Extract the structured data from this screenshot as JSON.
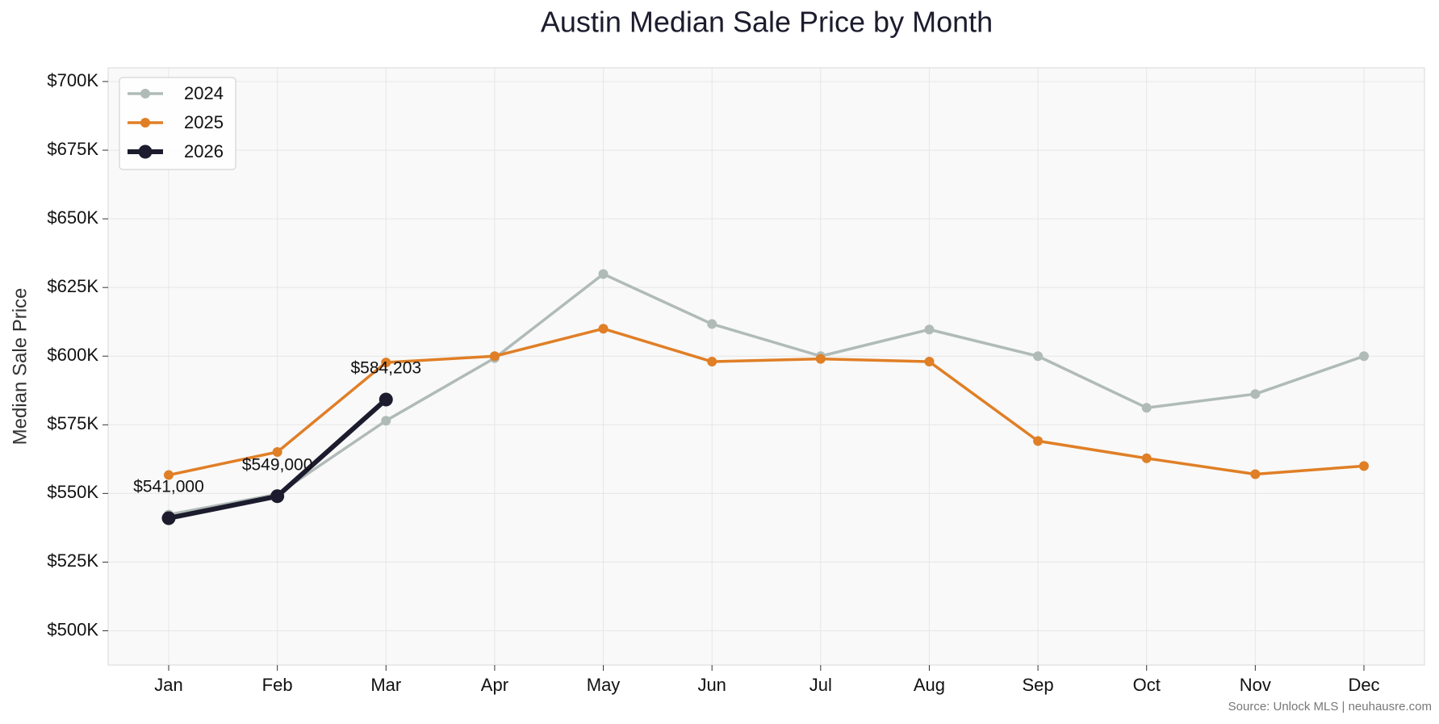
{
  "chart_data": {
    "type": "line",
    "title": "Austin Median Sale Price by Month",
    "y_label": "Median Sale Price",
    "source": "Source: Unlock MLS | neuhausre.com",
    "categories": [
      "Jan",
      "Feb",
      "Mar",
      "Apr",
      "May",
      "Jun",
      "Jul",
      "Aug",
      "Sep",
      "Oct",
      "Nov",
      "Dec"
    ],
    "series": [
      {
        "name": "2024",
        "color": "#b0bbb8",
        "values": [
          542300,
          549700,
          576500,
          599300,
          629900,
          611700,
          600000,
          609700,
          600000,
          581200,
          586200,
          600000
        ]
      },
      {
        "name": "2025",
        "color": "#e07f26",
        "values": [
          556700,
          565100,
          597700,
          600000,
          610000,
          598000,
          599000,
          598000,
          569100,
          562800,
          557000,
          560000
        ]
      },
      {
        "name": "2026",
        "color": "#1c1c2e",
        "values": [
          541000,
          549000,
          584203,
          null,
          null,
          null,
          null,
          null,
          null,
          null,
          null,
          null
        ],
        "value_labels": [
          "$541,000",
          "$549,000",
          "$584,203",
          null,
          null,
          null,
          null,
          null,
          null,
          null,
          null,
          null
        ]
      }
    ],
    "ylim": [
      487500,
      705000
    ],
    "yticks": [
      {
        "value": 500000,
        "label": "$500K"
      },
      {
        "value": 525000,
        "label": "$525K"
      },
      {
        "value": 550000,
        "label": "$550K"
      },
      {
        "value": 575000,
        "label": "$575K"
      },
      {
        "value": 600000,
        "label": "$600K"
      },
      {
        "value": 625000,
        "label": "$625K"
      },
      {
        "value": 650000,
        "label": "$650K"
      },
      {
        "value": 675000,
        "label": "$675K"
      },
      {
        "value": 700000,
        "label": "$700K"
      }
    ],
    "grid": true,
    "legend": "upper-left"
  }
}
